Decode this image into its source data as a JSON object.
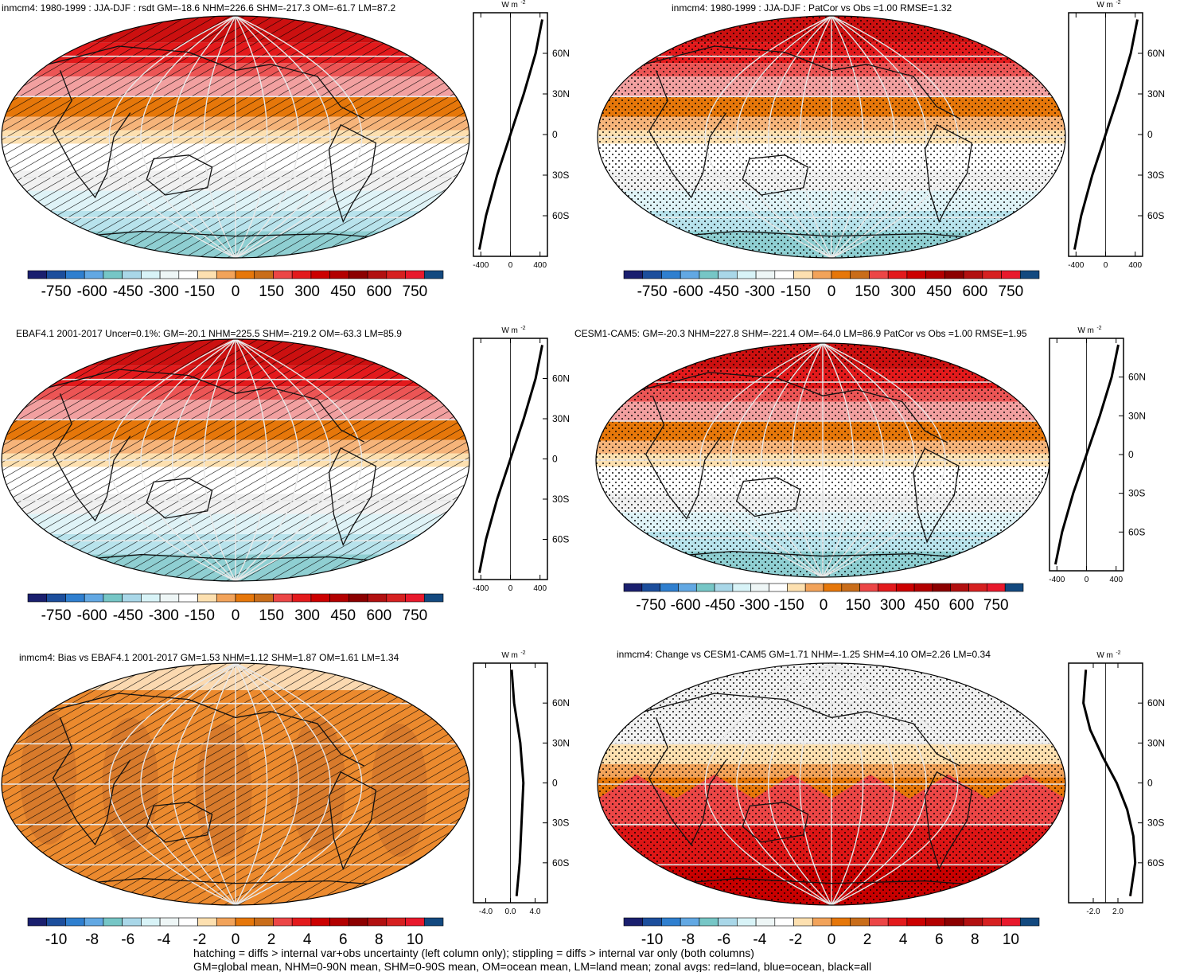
{
  "panels": [
    {
      "id": "a",
      "title": "inmcm4: 1980-1999 : JJA-DJF : rsdt GM=-18.6 NHM=226.6 SHM=-217.3 OM=-61.7 LM=87.2",
      "pattern": "hatch",
      "field": "abs",
      "colorbar_labels": [
        "-750",
        "-600",
        "-450",
        "-300",
        "-150",
        "0",
        "150",
        "300",
        "450",
        "600",
        "750"
      ],
      "zonal_ticks": [
        "-400",
        "0",
        "400"
      ]
    },
    {
      "id": "b",
      "title": "inmcm4: 1980-1999 : JJA-DJF : PatCor vs Obs =1.00 RMSE=1.32",
      "pattern": "stipple",
      "field": "abs",
      "colorbar_labels": [
        "-750",
        "-600",
        "-450",
        "-300",
        "-150",
        "0",
        "150",
        "300",
        "450",
        "600",
        "750"
      ],
      "zonal_ticks": [
        "-400",
        "0",
        "400"
      ]
    },
    {
      "id": "c",
      "title": "EBAF4.1 2001-2017 Uncer=0.1%: GM=-20.1 NHM=225.5 SHM=-219.2 OM=-63.3 LM=85.9",
      "pattern": "hatch",
      "field": "abs",
      "colorbar_labels": [
        "-750",
        "-600",
        "-450",
        "-300",
        "-150",
        "0",
        "150",
        "300",
        "450",
        "600",
        "750"
      ],
      "zonal_ticks": [
        "-400",
        "0",
        "400"
      ]
    },
    {
      "id": "d",
      "title": "CESM1-CAM5: GM=-20.3 NHM=227.8 SHM=-221.4 OM=-64.0 LM=86.9 PatCor vs Obs =1.00 RMSE=1.95",
      "pattern": "stipple",
      "field": "abs",
      "colorbar_labels": [
        "-750",
        "-600",
        "-450",
        "-300",
        "-150",
        "0",
        "150",
        "300",
        "450",
        "600",
        "750"
      ],
      "zonal_ticks": [
        "-400",
        "0",
        "400"
      ]
    },
    {
      "id": "e",
      "title": "inmcm4: Bias vs EBAF4.1 2001-2017 GM=1.53 NHM=1.12 SHM=1.87 OM=1.61 LM=1.34",
      "pattern": "hatch",
      "field": "bias",
      "colorbar_labels": [
        "-10",
        "-8",
        "-6",
        "-4",
        "-2",
        "0",
        "2",
        "4",
        "6",
        "8",
        "10"
      ],
      "zonal_ticks": [
        "-4.0",
        "0.0",
        "4.0"
      ]
    },
    {
      "id": "f",
      "title": "inmcm4: Change vs CESM1-CAM5 GM=1.71 NHM=-1.25 SHM=4.10 OM=2.26 LM=0.34",
      "pattern": "stipple",
      "field": "change",
      "colorbar_labels": [
        "-10",
        "-8",
        "-6",
        "-4",
        "-2",
        "0",
        "2",
        "4",
        "6",
        "8",
        "10"
      ],
      "zonal_ticks": [
        "-2.0",
        "2.0"
      ]
    }
  ],
  "units_label": "W m",
  "units_exp": "-2",
  "lat_labels": [
    "60N",
    "30N",
    "0",
    "30S",
    "60S"
  ],
  "colorbar_colors": [
    "#1a1f6e",
    "#1c4e9c",
    "#2f7fcf",
    "#62a8e3",
    "#76c6c6",
    "#a9d7e8",
    "#d8f3f7",
    "#eef6f6",
    "#ffffff",
    "#fde0b0",
    "#f2a35a",
    "#e6770a",
    "#c96d1a",
    "#ec4646",
    "#e31a1c",
    "#cc0000",
    "#b30000",
    "#8c0000",
    "#b21010",
    "#d62020",
    "#e8192c",
    "#13497f"
  ],
  "chart_data": [
    {
      "type": "heatmap",
      "panel": "a",
      "title": "inmcm4: 1980-1999 : JJA-DJF : rsdt",
      "units": "W m-2",
      "stats": {
        "GM": -18.6,
        "NHM": 226.6,
        "SHM": -217.3,
        "OM": -61.7,
        "LM": 87.2
      },
      "colorbar_range": [
        -750,
        750
      ],
      "zonal_mean": {
        "lat": [
          -85,
          -60,
          -30,
          0,
          30,
          60,
          85
        ],
        "values": [
          -420,
          -330,
          -180,
          0,
          180,
          340,
          430
        ]
      }
    },
    {
      "type": "heatmap",
      "panel": "b",
      "title": "inmcm4: 1980-1999 : JJA-DJF",
      "stats": {
        "PatCor": 1.0,
        "RMSE": 1.32
      },
      "colorbar_range": [
        -750,
        750
      ],
      "zonal_mean": {
        "lat": [
          -85,
          -60,
          -30,
          0,
          30,
          60,
          85
        ],
        "values": [
          -420,
          -330,
          -180,
          0,
          180,
          340,
          430
        ]
      }
    },
    {
      "type": "heatmap",
      "panel": "c",
      "title": "EBAF4.1 2001-2017",
      "stats": {
        "Uncer_pct": 0.1,
        "GM": -20.1,
        "NHM": 225.5,
        "SHM": -219.2,
        "OM": -63.3,
        "LM": 85.9
      },
      "colorbar_range": [
        -750,
        750
      ],
      "zonal_mean": {
        "lat": [
          -85,
          -60,
          -30,
          0,
          30,
          60,
          85
        ],
        "values": [
          -420,
          -330,
          -180,
          0,
          180,
          340,
          430
        ]
      }
    },
    {
      "type": "heatmap",
      "panel": "d",
      "title": "CESM1-CAM5",
      "stats": {
        "GM": -20.3,
        "NHM": 227.8,
        "SHM": -221.4,
        "OM": -64.0,
        "LM": 86.9,
        "PatCor": 1.0,
        "RMSE": 1.95
      },
      "colorbar_range": [
        -750,
        750
      ],
      "zonal_mean": {
        "lat": [
          -85,
          -60,
          -30,
          0,
          30,
          60,
          85
        ],
        "values": [
          -420,
          -330,
          -180,
          0,
          180,
          340,
          430
        ]
      }
    },
    {
      "type": "heatmap",
      "panel": "e",
      "title": "inmcm4: Bias vs EBAF4.1 2001-2017",
      "stats": {
        "GM": 1.53,
        "NHM": 1.12,
        "SHM": 1.87,
        "OM": 1.61,
        "LM": 1.34
      },
      "colorbar_range": [
        -10,
        10
      ],
      "zonal_mean": {
        "lat": [
          -85,
          -60,
          -30,
          0,
          30,
          60,
          85
        ],
        "values": [
          1.0,
          1.5,
          1.8,
          2.1,
          1.6,
          0.6,
          0.2
        ]
      }
    },
    {
      "type": "heatmap",
      "panel": "f",
      "title": "inmcm4: Change vs CESM1-CAM5",
      "stats": {
        "GM": 1.71,
        "NHM": -1.25,
        "SHM": 4.1,
        "OM": 2.26,
        "LM": 0.34
      },
      "colorbar_range": [
        -10,
        10
      ],
      "zonal_mean": {
        "lat": [
          -85,
          -60,
          -40,
          -20,
          0,
          20,
          40,
          60,
          85
        ],
        "values": [
          4.0,
          4.8,
          4.5,
          3.5,
          1.8,
          -0.5,
          -2.5,
          -3.6,
          -3.2
        ]
      }
    }
  ],
  "caption_lines": [
    "hatching = diffs > internal var+obs uncertainty (left column only); stippling = diffs > internal var only (both columns)",
    "GM=global mean, NHM=0-90N mean, SHM=0-90S mean, OM=ocean mean, LM=land mean; zonal avgs: red=land, blue=ocean, black=all"
  ]
}
